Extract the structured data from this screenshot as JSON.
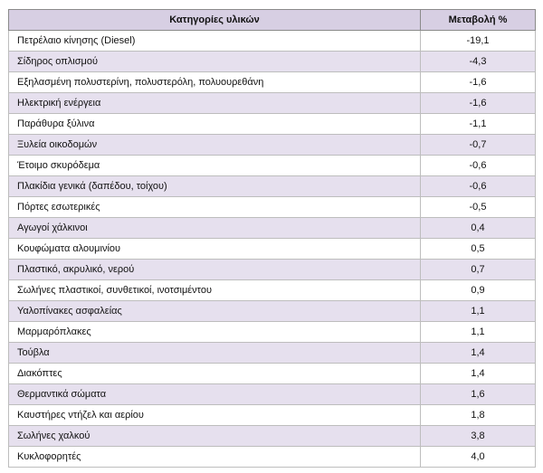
{
  "table": {
    "headers": {
      "category": "Κατηγορίες υλικών",
      "change": "Μεταβολή %"
    },
    "rows": [
      {
        "category": "Πετρέλαιο κίνησης (Diesel)",
        "change": "-19,1"
      },
      {
        "category": "Σίδηρος οπλισμού",
        "change": "-4,3"
      },
      {
        "category": "Εξηλασμένη πολυστερίνη, πολυστερόλη, πολυουρεθάνη",
        "change": "-1,6"
      },
      {
        "category": "Ηλεκτρική ενέργεια",
        "change": "-1,6"
      },
      {
        "category": "Παράθυρα ξύλινα",
        "change": "-1,1"
      },
      {
        "category": "Ξυλεία οικοδομών",
        "change": "-0,7"
      },
      {
        "category": "Έτοιμο σκυρόδεμα",
        "change": "-0,6"
      },
      {
        "category": "Πλακίδια γενικά (δαπέδου, τοίχου)",
        "change": "-0,6"
      },
      {
        "category": "Πόρτες εσωτερικές",
        "change": "-0,5"
      },
      {
        "category": "Αγωγοί χάλκινοι",
        "change": "0,4"
      },
      {
        "category": "Κουφώματα αλουμινίου",
        "change": "0,5"
      },
      {
        "category": "Πλαστικό, ακρυλικό, νερού",
        "change": "0,7"
      },
      {
        "category": "Σωλήνες πλαστικοί, συνθετικοί, ινοτσιμέντου",
        "change": "0,9"
      },
      {
        "category": "Υαλοπίνακες ασφαλείας",
        "change": "1,1"
      },
      {
        "category": "Μαρμαρόπλακες",
        "change": "1,1"
      },
      {
        "category": "Τούβλα",
        "change": "1,4"
      },
      {
        "category": "Διακόπτες",
        "change": "1,4"
      },
      {
        "category": "Θερμαντικά σώματα",
        "change": "1,6"
      },
      {
        "category": "Καυστήρες ντήζελ και αερίου",
        "change": "1,8"
      },
      {
        "category": "Σωλήνες χαλκού",
        "change": "3,8"
      },
      {
        "category": "Κυκλοφορητές",
        "change": "4,0"
      }
    ]
  }
}
